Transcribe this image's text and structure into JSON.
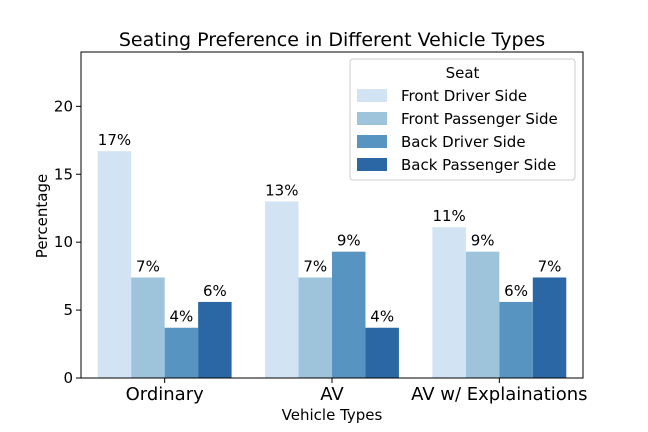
{
  "chart_data": {
    "type": "bar",
    "title": "Seating Preference in Different Vehicle Types",
    "xlabel": "Vehicle Types",
    "ylabel": "Percentage",
    "ylim": [
      0,
      24
    ],
    "yticks": [
      0,
      5,
      10,
      15,
      20
    ],
    "grid": false,
    "categories": [
      "Ordinary",
      "AV",
      "AV w/ Explainations"
    ],
    "legend": {
      "title": "Seat",
      "placement": "top-right"
    },
    "series": [
      {
        "name": "Front Driver Side",
        "color": "#d2e3f3",
        "values": [
          16.7,
          13.0,
          11.1
        ],
        "labels": [
          "17%",
          "13%",
          "11%"
        ]
      },
      {
        "name": "Front Passenger Side",
        "color": "#9ec4db",
        "values": [
          7.4,
          7.4,
          9.3
        ],
        "labels": [
          "7%",
          "7%",
          "9%"
        ]
      },
      {
        "name": "Back Driver Side",
        "color": "#5894c2",
        "values": [
          3.7,
          9.3,
          5.6
        ],
        "labels": [
          "4%",
          "9%",
          "6%"
        ]
      },
      {
        "name": "Back Passenger Side",
        "color": "#2a67a4",
        "values": [
          5.6,
          3.7,
          7.4
        ],
        "labels": [
          "6%",
          "4%",
          "7%"
        ]
      }
    ]
  }
}
